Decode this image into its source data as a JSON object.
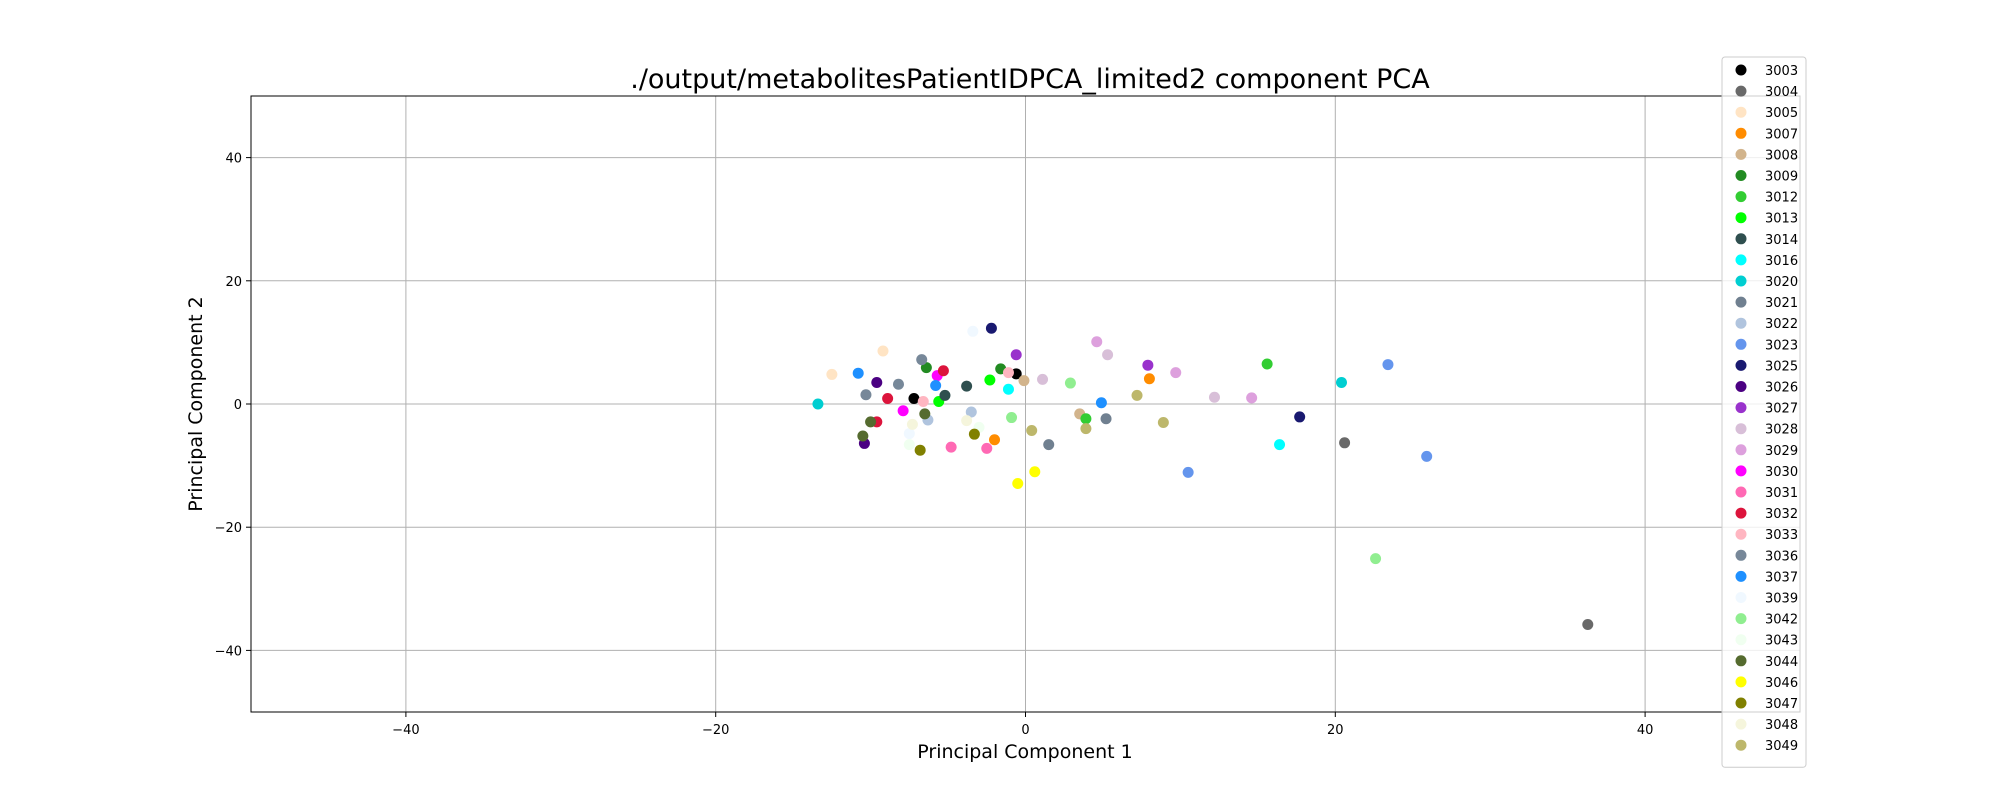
{
  "chart_data": {
    "type": "scatter",
    "title": "./output/metabolitesPatientIDPCA_limited2 component PCA",
    "xlabel": "Principal Component 1",
    "ylabel": "Principal Component 2",
    "xlim": [
      -50,
      50
    ],
    "ylim": [
      -50,
      50
    ],
    "xticks": [
      -40,
      -20,
      0,
      20,
      40
    ],
    "yticks": [
      -40,
      -20,
      0,
      20,
      40
    ],
    "xtick_labels": [
      "−40",
      "−20",
      "0",
      "20",
      "40"
    ],
    "ytick_labels": [
      "−40",
      "−20",
      "0",
      "20",
      "40"
    ],
    "grid": true,
    "legend_position": "top-right",
    "series": [
      {
        "name": "3003",
        "color": "#000000",
        "points": [
          [
            -7.2,
            0.9
          ],
          [
            -0.6,
            4.9
          ]
        ]
      },
      {
        "name": "3004",
        "color": "#696969",
        "points": [
          [
            36.3,
            -35.8
          ],
          [
            20.6,
            -6.3
          ]
        ]
      },
      {
        "name": "3005",
        "color": "#ffe4c4",
        "points": [
          [
            -12.5,
            4.8
          ],
          [
            -9.2,
            8.6
          ]
        ]
      },
      {
        "name": "3007",
        "color": "#ff8c00",
        "points": [
          [
            8.0,
            4.1
          ],
          [
            -2.0,
            -5.8
          ]
        ]
      },
      {
        "name": "3008",
        "color": "#d2b48c",
        "points": [
          [
            -0.1,
            3.8
          ],
          [
            3.5,
            -1.6
          ]
        ]
      },
      {
        "name": "3009",
        "color": "#228b22",
        "points": [
          [
            -6.4,
            5.9
          ],
          [
            -1.6,
            5.7
          ]
        ]
      },
      {
        "name": "3012",
        "color": "#32cd32",
        "points": [
          [
            15.6,
            6.5
          ],
          [
            3.9,
            -2.4
          ]
        ]
      },
      {
        "name": "3013",
        "color": "#00ff00",
        "points": [
          [
            -2.3,
            3.9
          ],
          [
            -5.6,
            0.4
          ]
        ]
      },
      {
        "name": "3014",
        "color": "#2f4f4f",
        "points": [
          [
            -3.8,
            2.9
          ],
          [
            -5.2,
            1.4
          ]
        ]
      },
      {
        "name": "3016",
        "color": "#00ffff",
        "points": [
          [
            16.4,
            -6.6
          ],
          [
            -1.1,
            2.4
          ]
        ]
      },
      {
        "name": "3020",
        "color": "#00ced1",
        "points": [
          [
            -13.4,
            0.0
          ],
          [
            20.4,
            3.5
          ]
        ]
      },
      {
        "name": "3021",
        "color": "#708090",
        "points": [
          [
            1.5,
            -6.6
          ],
          [
            5.2,
            -2.4
          ]
        ]
      },
      {
        "name": "3022",
        "color": "#b0c4de",
        "points": [
          [
            -6.3,
            -2.6
          ],
          [
            -3.5,
            -1.3
          ]
        ]
      },
      {
        "name": "3023",
        "color": "#6495ed",
        "points": [
          [
            23.4,
            6.4
          ],
          [
            25.9,
            -8.5
          ],
          [
            10.5,
            -11.1
          ]
        ]
      },
      {
        "name": "3025",
        "color": "#191970",
        "points": [
          [
            17.7,
            -2.1
          ],
          [
            -2.2,
            12.3
          ]
        ]
      },
      {
        "name": "3026",
        "color": "#4b0082",
        "points": [
          [
            -10.4,
            -6.4
          ],
          [
            -9.6,
            3.5
          ]
        ]
      },
      {
        "name": "3027",
        "color": "#9932cc",
        "points": [
          [
            7.9,
            6.3
          ],
          [
            -0.6,
            8.0
          ]
        ]
      },
      {
        "name": "3028",
        "color": "#d8bfd8",
        "points": [
          [
            12.2,
            1.1
          ],
          [
            5.3,
            8.0
          ],
          [
            1.1,
            4.0
          ]
        ]
      },
      {
        "name": "3029",
        "color": "#dda0dd",
        "points": [
          [
            14.6,
            1.0
          ],
          [
            4.6,
            10.1
          ],
          [
            9.7,
            5.1
          ]
        ]
      },
      {
        "name": "3030",
        "color": "#ff00ff",
        "points": [
          [
            -7.9,
            -1.1
          ],
          [
            -5.7,
            4.6
          ]
        ]
      },
      {
        "name": "3031",
        "color": "#ff69b4",
        "points": [
          [
            -4.8,
            -7.0
          ],
          [
            -2.5,
            -7.2
          ]
        ]
      },
      {
        "name": "3032",
        "color": "#dc143c",
        "points": [
          [
            -5.3,
            5.4
          ],
          [
            -8.9,
            0.9
          ],
          [
            -9.6,
            -2.9
          ]
        ]
      },
      {
        "name": "3033",
        "color": "#ffb6c1",
        "points": [
          [
            -1.1,
            5.1
          ],
          [
            -6.6,
            0.4
          ]
        ]
      },
      {
        "name": "3036",
        "color": "#778899",
        "points": [
          [
            -10.3,
            1.5
          ],
          [
            -6.7,
            7.2
          ],
          [
            -8.2,
            3.2
          ]
        ]
      },
      {
        "name": "3037",
        "color": "#1e90ff",
        "points": [
          [
            -10.8,
            5.0
          ],
          [
            4.9,
            0.2
          ],
          [
            -5.8,
            3.0
          ]
        ]
      },
      {
        "name": "3039",
        "color": "#f0f8ff",
        "points": [
          [
            -3.4,
            11.8
          ],
          [
            -7.5,
            -4.8
          ]
        ]
      },
      {
        "name": "3042",
        "color": "#90ee90",
        "points": [
          [
            22.6,
            -25.1
          ],
          [
            2.9,
            3.4
          ],
          [
            -0.9,
            -2.2
          ]
        ]
      },
      {
        "name": "3043",
        "color": "#f0fff0",
        "points": [
          [
            -7.5,
            -6.6
          ],
          [
            -3.0,
            -3.8
          ]
        ]
      },
      {
        "name": "3044",
        "color": "#556b2f",
        "points": [
          [
            -10.5,
            -5.2
          ],
          [
            -6.5,
            -1.6
          ],
          [
            -10.0,
            -2.9
          ]
        ]
      },
      {
        "name": "3046",
        "color": "#ffff00",
        "points": [
          [
            -0.5,
            -12.9
          ],
          [
            0.6,
            -11.0
          ]
        ]
      },
      {
        "name": "3047",
        "color": "#808000",
        "points": [
          [
            -6.8,
            -7.5
          ],
          [
            -3.3,
            -4.9
          ]
        ]
      },
      {
        "name": "3048",
        "color": "#f5f5dc",
        "points": [
          [
            -3.8,
            -2.7
          ],
          [
            -7.3,
            -3.3
          ]
        ]
      },
      {
        "name": "3049",
        "color": "#bdb76b",
        "points": [
          [
            7.2,
            1.4
          ],
          [
            8.9,
            -3.0
          ],
          [
            3.9,
            -4.0
          ],
          [
            0.4,
            -4.3
          ]
        ]
      }
    ]
  }
}
